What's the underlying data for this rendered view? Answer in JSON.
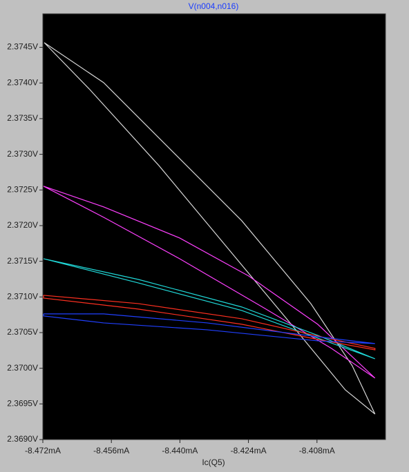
{
  "chart_data": {
    "type": "line",
    "title": "V(n004,n016)",
    "x_label": "Ic(Q5)",
    "xlim": [
      -8.472,
      -8.392
    ],
    "ylim": [
      2.369,
      2.37497
    ],
    "xticks": [
      {
        "value": -8.472,
        "label": "-8.472mA"
      },
      {
        "value": -8.456,
        "label": "-8.456mA"
      },
      {
        "value": -8.44,
        "label": "-8.440mA"
      },
      {
        "value": -8.424,
        "label": "-8.424mA"
      },
      {
        "value": -8.408,
        "label": "-8.408mA"
      }
    ],
    "yticks": [
      {
        "value": 2.369,
        "label": "2.3690V"
      },
      {
        "value": 2.3695,
        "label": "2.3695V"
      },
      {
        "value": 2.37,
        "label": "2.3700V"
      },
      {
        "value": 2.3705,
        "label": "2.3705V"
      },
      {
        "value": 2.371,
        "label": "2.3710V"
      },
      {
        "value": 2.3715,
        "label": "2.3715V"
      },
      {
        "value": 2.372,
        "label": "2.3720V"
      },
      {
        "value": 2.3725,
        "label": "2.3725V"
      },
      {
        "value": 2.373,
        "label": "2.3730V"
      },
      {
        "value": 2.3735,
        "label": "2.3735V"
      },
      {
        "value": 2.374,
        "label": "2.3740V"
      },
      {
        "value": 2.3745,
        "label": "2.3745V"
      }
    ],
    "series": [
      {
        "color": "#d8d8d8",
        "x": [
          -8.47168,
          -8.45781,
          -8.44169,
          -8.42557,
          -8.40945,
          -8.39978,
          -8.39446,
          -8.40139,
          -8.41268,
          -8.4288,
          -8.44492,
          -8.46104,
          -8.47168
        ],
        "values": [
          2.374566,
          2.374005,
          2.373037,
          2.372069,
          2.370907,
          2.370036,
          2.369358,
          2.369697,
          2.37052,
          2.371681,
          2.372843,
          2.373908,
          2.374566
        ]
      },
      {
        "color": "#ff40ff",
        "x": [
          -8.47184,
          -8.45781,
          -8.44008,
          -8.42396,
          -8.40784,
          -8.39446,
          -8.40462,
          -8.42074,
          -8.44008,
          -8.45781,
          -8.47184
        ],
        "values": [
          2.372553,
          2.372262,
          2.371827,
          2.371294,
          2.370617,
          2.369862,
          2.370278,
          2.370859,
          2.371536,
          2.372117,
          2.372553
        ]
      },
      {
        "color": "#20d8d8",
        "x": [
          -8.47184,
          -8.44975,
          -8.42557,
          -8.40784,
          -8.39446,
          -8.40784,
          -8.42557,
          -8.44975,
          -8.47184
        ],
        "values": [
          2.371536,
          2.371197,
          2.37081,
          2.370423,
          2.370133,
          2.370462,
          2.370859,
          2.371246,
          2.371536
        ]
      },
      {
        "color": "#ff3020",
        "x": [
          -8.47184,
          -8.44975,
          -8.42557,
          -8.40784,
          -8.39446,
          -8.39446,
          -8.40784,
          -8.42557,
          -8.44975,
          -8.47184,
          -8.47184
        ],
        "values": [
          2.371023,
          2.370907,
          2.370694,
          2.370452,
          2.370278,
          2.370258,
          2.370404,
          2.370617,
          2.37083,
          2.370984,
          2.371023
        ]
      },
      {
        "color": "#2040ff",
        "x": [
          -8.47184,
          -8.45781,
          -8.43363,
          -8.40784,
          -8.39446,
          -8.40784,
          -8.43363,
          -8.45781,
          -8.47184,
          -8.47184
        ],
        "values": [
          2.370762,
          2.370762,
          2.370636,
          2.370442,
          2.370346,
          2.370384,
          2.370539,
          2.370636,
          2.370733,
          2.370762
        ]
      }
    ]
  }
}
